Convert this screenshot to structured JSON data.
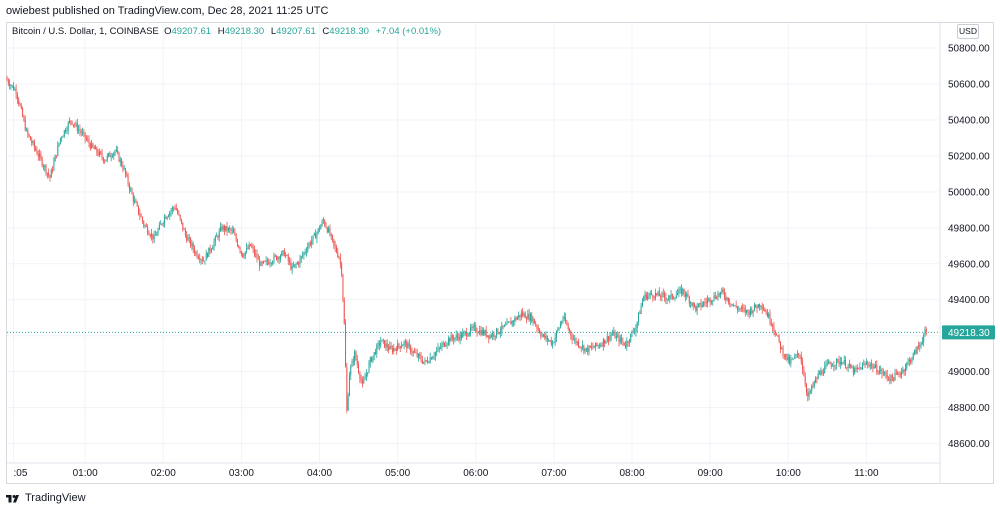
{
  "header": {
    "published_text": "owiebest published on TradingView.com, Dec 28, 2021 11:25 UTC"
  },
  "legend": {
    "symbol": "Bitcoin / U.S. Dollar, 1, COINBASE",
    "open_label": "O",
    "open_value": "49207.61",
    "high_label": "H",
    "high_value": "49218.30",
    "low_label": "L",
    "low_value": "49207.61",
    "close_label": "C",
    "close_value": "49218.30",
    "change": "+7.04 (+0.01%)"
  },
  "price_scale": {
    "currency": "USD",
    "last_price_label": "49218.30"
  },
  "footer": {
    "brand": "TradingView"
  },
  "colors": {
    "up": "#26a69a",
    "down": "#ef5350",
    "grid": "#f0f3fa",
    "last_price": "#26a69a"
  },
  "chart_data": {
    "type": "candlestick",
    "x_tick_labels": [
      ":05",
      "01:00",
      "02:00",
      "03:00",
      "04:00",
      "05:00",
      "06:00",
      "07:00",
      "08:00",
      "09:00",
      "10:00",
      "11:00"
    ],
    "y_tick_labels": [
      "50800.00",
      "50600.00",
      "50400.00",
      "50200.00",
      "50000.00",
      "49800.00",
      "49600.00",
      "49400.00",
      "49200.00",
      "49000.00",
      "48800.00",
      "48600.00"
    ],
    "y_ticks": [
      50800,
      50600,
      50400,
      50200,
      50000,
      49800,
      49600,
      49400,
      49200,
      49000,
      48800,
      48600
    ],
    "ylim": [
      48520,
      50900
    ],
    "x_ticks_minutes": [
      5,
      60,
      120,
      180,
      240,
      300,
      360,
      420,
      480,
      540,
      600,
      660
    ],
    "x_range_minutes": [
      0,
      715
    ],
    "last_price": 49218.3,
    "price_path": [
      [
        0,
        50630
      ],
      [
        8,
        50560
      ],
      [
        16,
        50330
      ],
      [
        24,
        50220
      ],
      [
        34,
        50080
      ],
      [
        42,
        50300
      ],
      [
        50,
        50400
      ],
      [
        58,
        50330
      ],
      [
        66,
        50250
      ],
      [
        76,
        50180
      ],
      [
        84,
        50230
      ],
      [
        90,
        50140
      ],
      [
        98,
        49960
      ],
      [
        106,
        49820
      ],
      [
        114,
        49740
      ],
      [
        122,
        49860
      ],
      [
        130,
        49920
      ],
      [
        138,
        49760
      ],
      [
        146,
        49660
      ],
      [
        152,
        49620
      ],
      [
        160,
        49720
      ],
      [
        166,
        49800
      ],
      [
        174,
        49780
      ],
      [
        182,
        49650
      ],
      [
        188,
        49700
      ],
      [
        196,
        49590
      ],
      [
        206,
        49630
      ],
      [
        214,
        49660
      ],
      [
        220,
        49570
      ],
      [
        226,
        49620
      ],
      [
        232,
        49700
      ],
      [
        238,
        49760
      ],
      [
        244,
        49840
      ],
      [
        248,
        49780
      ],
      [
        252,
        49700
      ],
      [
        256,
        49640
      ],
      [
        258,
        49560
      ],
      [
        260,
        49260
      ],
      [
        262,
        48780
      ],
      [
        264,
        48990
      ],
      [
        268,
        49100
      ],
      [
        274,
        48920
      ],
      [
        280,
        49060
      ],
      [
        288,
        49170
      ],
      [
        296,
        49120
      ],
      [
        306,
        49160
      ],
      [
        314,
        49100
      ],
      [
        322,
        49050
      ],
      [
        332,
        49120
      ],
      [
        340,
        49180
      ],
      [
        350,
        49200
      ],
      [
        360,
        49240
      ],
      [
        372,
        49200
      ],
      [
        384,
        49250
      ],
      [
        396,
        49320
      ],
      [
        404,
        49300
      ],
      [
        412,
        49200
      ],
      [
        420,
        49160
      ],
      [
        428,
        49300
      ],
      [
        436,
        49180
      ],
      [
        446,
        49120
      ],
      [
        456,
        49150
      ],
      [
        466,
        49210
      ],
      [
        476,
        49150
      ],
      [
        484,
        49250
      ],
      [
        490,
        49420
      ],
      [
        498,
        49430
      ],
      [
        510,
        49410
      ],
      [
        520,
        49450
      ],
      [
        530,
        49350
      ],
      [
        540,
        49400
      ],
      [
        550,
        49440
      ],
      [
        560,
        49360
      ],
      [
        570,
        49330
      ],
      [
        580,
        49380
      ],
      [
        588,
        49280
      ],
      [
        596,
        49120
      ],
      [
        602,
        49050
      ],
      [
        610,
        49100
      ],
      [
        616,
        48860
      ],
      [
        624,
        48980
      ],
      [
        632,
        49040
      ],
      [
        642,
        49060
      ],
      [
        652,
        49000
      ],
      [
        662,
        49050
      ],
      [
        670,
        49010
      ],
      [
        680,
        48960
      ],
      [
        688,
        49000
      ],
      [
        696,
        49080
      ],
      [
        702,
        49150
      ],
      [
        706,
        49218
      ]
    ]
  }
}
